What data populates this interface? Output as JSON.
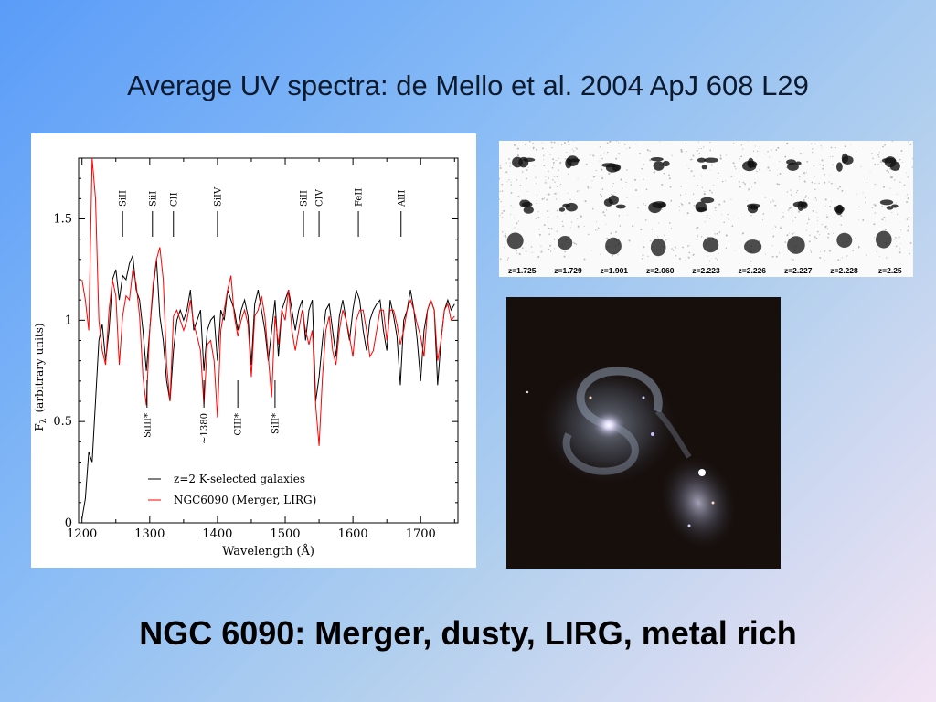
{
  "slide": {
    "title": "Average UV spectra: de Mello et al. 2004 ApJ 608 L29",
    "footer": "NGC 6090: Merger, dusty, LIRG, metal rich"
  },
  "chart_data": {
    "type": "line",
    "title": "",
    "xlabel": "Wavelength (Å)",
    "ylabel_main": "F",
    "ylabel_sub": "λ",
    "ylabel_rest": "(arbitrary units)",
    "xlim": [
      1195,
      1755
    ],
    "ylim": [
      0,
      1.8
    ],
    "x_ticks": [
      1200,
      1300,
      1400,
      1500,
      1600,
      1700
    ],
    "x_tick_labels": [
      "1200",
      "1300",
      "1400",
      "1500",
      "1600",
      "1700"
    ],
    "y_ticks": [
      0,
      0.5,
      1,
      1.5
    ],
    "y_tick_labels": [
      "0",
      "0.5",
      "1",
      "1.5"
    ],
    "grid": false,
    "legend_position": "bottom-right",
    "series": [
      {
        "name": "z=2 K-selected galaxies",
        "color": "#000000",
        "x": [
          1200,
          1205,
          1210,
          1215,
          1220,
          1225,
          1230,
          1235,
          1240,
          1245,
          1250,
          1255,
          1260,
          1265,
          1270,
          1275,
          1280,
          1285,
          1290,
          1295,
          1300,
          1305,
          1310,
          1315,
          1320,
          1325,
          1330,
          1335,
          1340,
          1345,
          1350,
          1355,
          1360,
          1365,
          1370,
          1375,
          1380,
          1385,
          1390,
          1395,
          1400,
          1405,
          1410,
          1415,
          1420,
          1425,
          1430,
          1435,
          1440,
          1445,
          1450,
          1455,
          1460,
          1465,
          1470,
          1475,
          1480,
          1485,
          1490,
          1495,
          1500,
          1505,
          1510,
          1515,
          1520,
          1525,
          1530,
          1535,
          1540,
          1545,
          1550,
          1555,
          1560,
          1565,
          1570,
          1575,
          1580,
          1585,
          1590,
          1595,
          1600,
          1605,
          1610,
          1615,
          1620,
          1625,
          1630,
          1635,
          1640,
          1645,
          1650,
          1655,
          1660,
          1665,
          1670,
          1675,
          1680,
          1685,
          1690,
          1695,
          1700,
          1705,
          1710,
          1715,
          1720,
          1725,
          1730,
          1735,
          1740,
          1745,
          1750
        ],
        "y": [
          0.02,
          0.12,
          0.35,
          0.3,
          0.6,
          0.9,
          0.98,
          0.8,
          0.95,
          1.2,
          1.25,
          1.1,
          1.22,
          1.2,
          1.28,
          1.32,
          1.15,
          1.1,
          0.95,
          0.75,
          0.95,
          1.15,
          1.3,
          1.02,
          0.9,
          0.7,
          0.6,
          0.85,
          1.0,
          1.05,
          1.0,
          1.05,
          1.15,
          0.95,
          1.0,
          1.05,
          0.75,
          0.95,
          1.0,
          1.02,
          0.8,
          1.05,
          1.0,
          1.15,
          1.1,
          1.05,
          0.95,
          1.05,
          1.1,
          1.02,
          0.78,
          1.08,
          1.15,
          1.05,
          0.95,
          0.8,
          0.95,
          1.1,
          0.82,
          1.05,
          1.1,
          1.15,
          1.05,
          0.95,
          1.05,
          1.1,
          0.9,
          1.05,
          1.1,
          0.6,
          0.72,
          0.9,
          1.05,
          1.08,
          0.95,
          0.82,
          1.02,
          1.1,
          1.0,
          0.9,
          1.05,
          1.15,
          1.1,
          0.95,
          0.85,
          1.0,
          1.05,
          1.08,
          1.1,
          0.95,
          0.85,
          1.1,
          1.02,
          0.92,
          0.68,
          1.0,
          1.05,
          1.15,
          1.05,
          0.9,
          0.7,
          0.95,
          1.05,
          1.1,
          1.05,
          0.68,
          0.9,
          1.05,
          1.1,
          1.05,
          1.08
        ]
      },
      {
        "name": "NGC6090 (Merger, LIRG)",
        "color": "#ff0000",
        "x": [
          1200,
          1205,
          1210,
          1215,
          1220,
          1225,
          1230,
          1235,
          1240,
          1245,
          1250,
          1255,
          1260,
          1265,
          1270,
          1275,
          1280,
          1285,
          1290,
          1295,
          1300,
          1305,
          1310,
          1315,
          1320,
          1325,
          1330,
          1335,
          1340,
          1345,
          1350,
          1355,
          1360,
          1365,
          1370,
          1375,
          1380,
          1385,
          1390,
          1395,
          1400,
          1405,
          1410,
          1415,
          1420,
          1425,
          1430,
          1435,
          1440,
          1445,
          1450,
          1455,
          1460,
          1465,
          1470,
          1475,
          1480,
          1485,
          1490,
          1495,
          1500,
          1505,
          1510,
          1515,
          1520,
          1525,
          1530,
          1535,
          1540,
          1545,
          1550,
          1555,
          1560,
          1565,
          1570,
          1575,
          1580,
          1585,
          1590,
          1595,
          1600,
          1605,
          1610,
          1615,
          1620,
          1625,
          1630,
          1635,
          1640,
          1645,
          1650,
          1655,
          1660,
          1665,
          1670,
          1675,
          1680,
          1685,
          1690,
          1695,
          1700,
          1705,
          1710,
          1715,
          1720,
          1725,
          1730,
          1735,
          1740,
          1745,
          1750
        ],
        "y": [
          1.2,
          1.1,
          0.95,
          1.8,
          1.6,
          1.0,
          0.85,
          0.78,
          1.05,
          1.2,
          1.12,
          0.78,
          1.02,
          1.12,
          1.1,
          1.25,
          1.18,
          1.02,
          0.72,
          0.58,
          0.95,
          1.18,
          1.3,
          1.36,
          1.2,
          0.78,
          0.6,
          1.02,
          1.05,
          1.0,
          0.95,
          1.0,
          1.1,
          0.98,
          0.92,
          0.85,
          0.58,
          0.88,
          0.9,
          0.8,
          0.52,
          0.95,
          1.05,
          1.15,
          1.22,
          1.02,
          0.92,
          1.0,
          1.05,
          0.98,
          0.72,
          1.02,
          1.05,
          1.12,
          1.02,
          0.82,
          0.62,
          1.02,
          0.88,
          1.05,
          1.0,
          1.15,
          0.95,
          0.85,
          0.95,
          1.05,
          0.95,
          0.88,
          0.95,
          0.58,
          0.38,
          0.72,
          0.95,
          1.02,
          0.85,
          0.78,
          0.95,
          1.05,
          1.0,
          0.92,
          0.82,
          1.0,
          1.05,
          1.05,
          0.95,
          0.82,
          0.85,
          0.95,
          1.05,
          1.05,
          0.9,
          1.05,
          1.05,
          0.98,
          0.88,
          0.95,
          1.05,
          1.1,
          1.05,
          0.98,
          0.92,
          0.82,
          1.05,
          1.1,
          1.05,
          0.8,
          0.9,
          1.05,
          1.08,
          1.0,
          1.02
        ]
      }
    ],
    "annotations_top": [
      {
        "label": "SiII",
        "x": 1260
      },
      {
        "label": "SiiI",
        "x": 1304
      },
      {
        "label": "CII",
        "x": 1335
      },
      {
        "label": "SiIV",
        "x": 1400
      },
      {
        "label": "SiII",
        "x": 1527
      },
      {
        "label": "CIV",
        "x": 1550
      },
      {
        "label": "FeII",
        "x": 1608
      },
      {
        "label": "AlII",
        "x": 1671
      }
    ],
    "annotations_bottom": [
      {
        "label": "SiIII*",
        "x": 1296
      },
      {
        "label": "~1380",
        "x": 1380
      },
      {
        "label": "CIII*",
        "x": 1430
      },
      {
        "label": "SiII*",
        "x": 1485
      }
    ]
  },
  "images": {
    "montage_labels": [
      "z=1.725",
      "z=1.729",
      "z=1.901",
      "z=2.060",
      "z=2.223",
      "z=2.226",
      "z=2.227",
      "z=2.228",
      "z=2.25"
    ]
  }
}
